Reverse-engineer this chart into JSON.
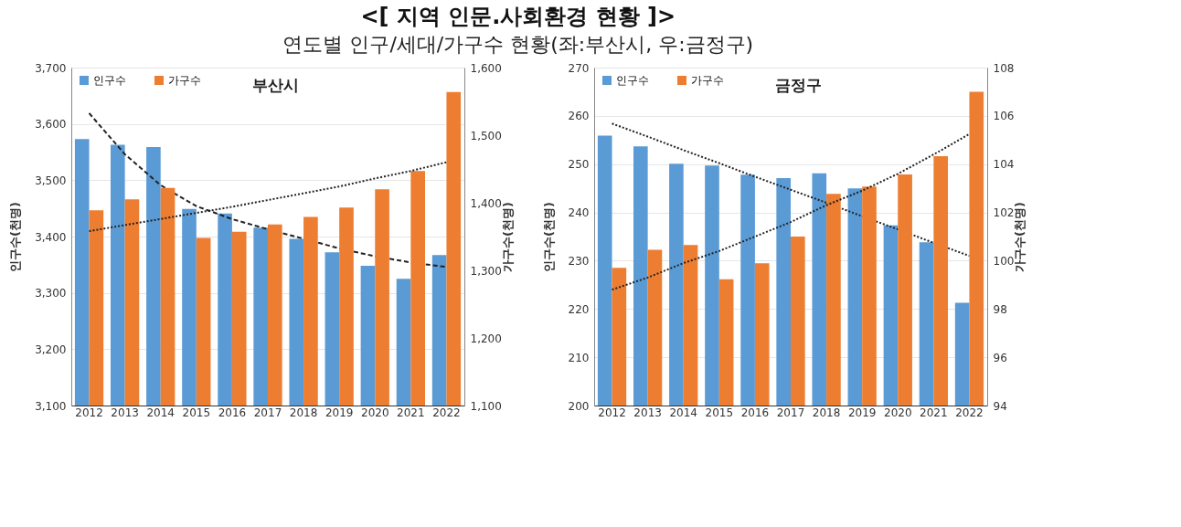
{
  "chart_data": [
    {
      "type": "bar",
      "title": "부산시",
      "annotations": [
        "<[ 지역 인문.사회환경 현황 ]>",
        "연도별 인구/세대/가구수 현황(좌:부산시, 우:금정구)"
      ],
      "categories": [
        "2012",
        "2013",
        "2014",
        "2015",
        "2016",
        "2017",
        "2018",
        "2019",
        "2020",
        "2021",
        "2022"
      ],
      "series": [
        {
          "name": "인구수",
          "color": "#5b9bd5",
          "values": [
            3573,
            3563,
            3559,
            3449,
            3441,
            3416,
            3396,
            3372,
            3348,
            3325,
            3367
          ]
        },
        {
          "name": "가구수",
          "color": "#ed7d31",
          "axis": "y2",
          "values": [
            1389,
            1405,
            1422,
            1348,
            1357,
            1368,
            1379,
            1393,
            1420,
            1447,
            1564
          ]
        },
        {
          "type": "line",
          "color": "#222222",
          "line_style": "dashed",
          "values": [
            3619,
            3546,
            3491,
            3454,
            3431,
            3413,
            3396,
            3379,
            3365,
            3354,
            3346
          ]
        },
        {
          "type": "line",
          "color": "#222222",
          "line_style": "dotted",
          "axis": "y2",
          "values": [
            1358,
            1367,
            1376,
            1385,
            1394,
            1404,
            1414,
            1424,
            1436,
            1447,
            1460
          ]
        }
      ],
      "ylabel": "인구수(천명)",
      "y2label": "가구수(천명)",
      "ylim": [
        3100,
        3700
      ],
      "yticks": [
        {
          "value": 3100,
          "label": "3,100"
        },
        {
          "value": 3200,
          "label": "3,200"
        },
        {
          "value": 3300,
          "label": "3,300"
        },
        {
          "value": 3400,
          "label": "3,400"
        },
        {
          "value": 3500,
          "label": "3,500"
        },
        {
          "value": 3600,
          "label": "3,600"
        },
        {
          "value": 3700,
          "label": "3,700"
        }
      ],
      "y2lim": [
        1100,
        1600
      ],
      "y2ticks": [
        {
          "value": 1100,
          "label": "1,100"
        },
        {
          "value": 1200,
          "label": "1,200"
        },
        {
          "value": 1300,
          "label": "1,300"
        },
        {
          "value": 1400,
          "label": "1,400"
        },
        {
          "value": 1500,
          "label": "1,500"
        },
        {
          "value": 1600,
          "label": "1,600"
        }
      ],
      "grid": "y",
      "legend": "top left"
    },
    {
      "type": "bar",
      "title": "금정구",
      "categories": [
        "2012",
        "2013",
        "2014",
        "2015",
        "2016",
        "2017",
        "2018",
        "2019",
        "2020",
        "2021",
        "2022"
      ],
      "series": [
        {
          "name": "인구수",
          "color": "#5b9bd5",
          "values": [
            255.9,
            253.7,
            250.1,
            249.7,
            247.8,
            247.1,
            248.1,
            245.0,
            237.3,
            233.8,
            221.3
          ]
        },
        {
          "name": "가구수",
          "color": "#ed7d31",
          "axis": "y2",
          "values": [
            99.7,
            100.45,
            100.65,
            99.23,
            99.89,
            101.0,
            102.77,
            103.07,
            103.57,
            104.33,
            107.0
          ]
        },
        {
          "type": "line",
          "color": "#222222",
          "line_style": "dotted",
          "values": [
            258.4,
            255.7,
            252.9,
            250.2,
            247.4,
            244.7,
            242.0,
            239.2,
            236.5,
            233.7,
            231.0
          ]
        },
        {
          "type": "line",
          "color": "#222222",
          "line_style": "dotted",
          "axis": "y2",
          "values": [
            98.8,
            99.3,
            99.9,
            100.4,
            101.0,
            101.6,
            102.3,
            102.9,
            103.6,
            104.4,
            105.25
          ]
        }
      ],
      "ylabel": "인구수(천명)",
      "y2label": "가구수(천명)",
      "ylim": [
        200,
        270
      ],
      "yticks": [
        200,
        210,
        220,
        230,
        240,
        250,
        260,
        270
      ],
      "y2lim": [
        94,
        108
      ],
      "y2ticks": [
        94,
        96,
        98,
        100,
        102,
        104,
        106,
        108
      ],
      "grid": "y",
      "legend": "top left"
    }
  ]
}
